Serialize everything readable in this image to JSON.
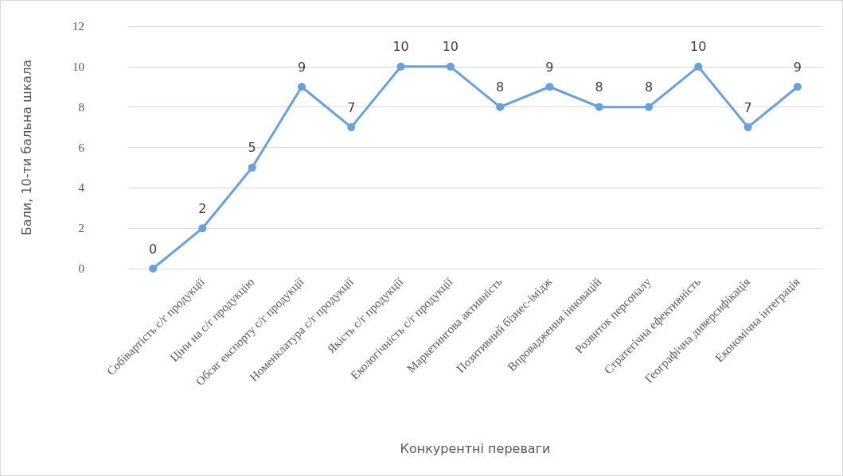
{
  "chart_data": {
    "type": "line",
    "xlabel": "Конкурентні переваги",
    "ylabel": "Бали, 10-ти бальна шкала",
    "categories": [
      null,
      "Собівартість с/г продукції",
      "Ціни на с/г продукцію",
      "Обсяг експорту с/г продукції",
      "Номенклатура с/г продукції",
      "Якість с/г продукції",
      "Екологічність с/г продукції",
      "Маркетингова активність",
      "Позитивний бізнес-імідж",
      "Впровадження інновацій",
      "Розвиток персоналу",
      "Стратегічна ефективність",
      "Географічна диверсифікація",
      "Економічна інтеграція"
    ],
    "series": [
      {
        "color": "#6a9fd8",
        "values": [
          0,
          2,
          5,
          9,
          7,
          10,
          10,
          8,
          9,
          8,
          8,
          10,
          7,
          9
        ]
      }
    ],
    "ylim": [
      0,
      12
    ],
    "yticks": [
      0,
      2,
      4,
      6,
      8,
      10,
      12
    ],
    "grid": "y",
    "marker": "circle",
    "line_style": "solid",
    "data_labels": true
  }
}
